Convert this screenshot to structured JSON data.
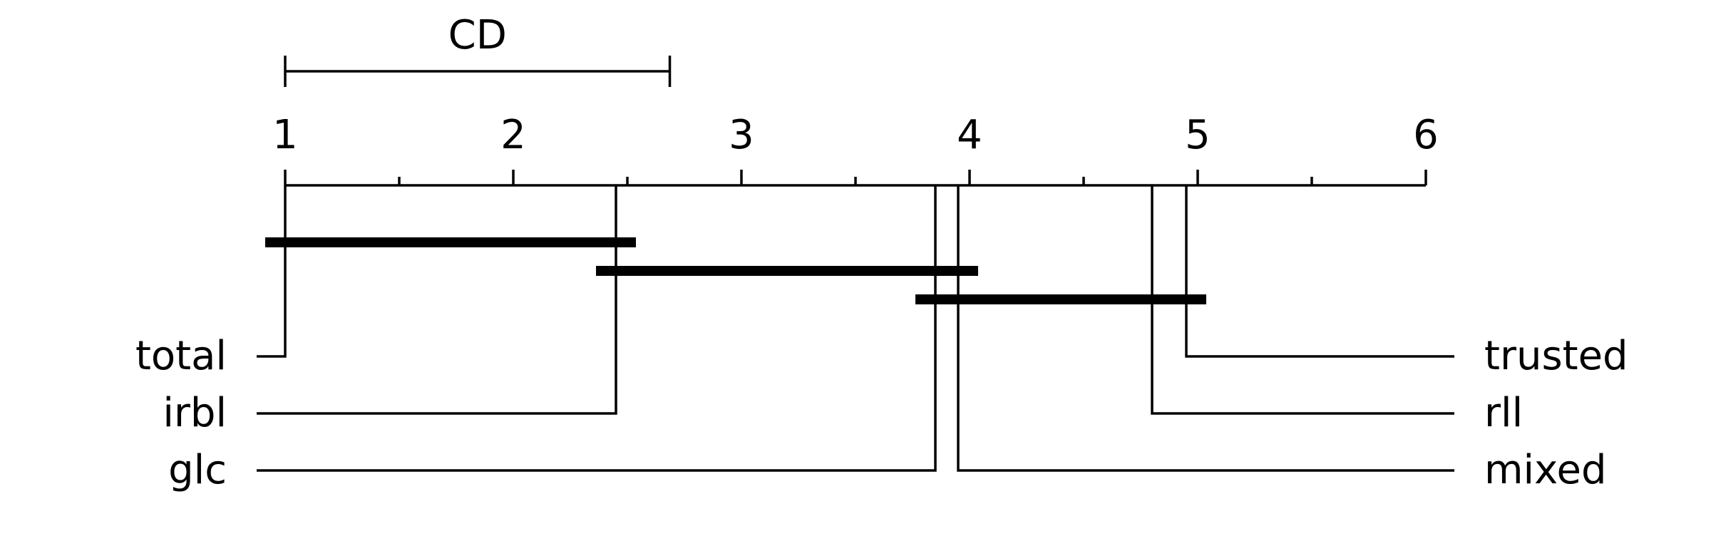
{
  "chart_data": {
    "type": "critical-difference",
    "axis": {
      "min": 1,
      "max": 6,
      "tick_labels": [
        "1",
        "2",
        "3",
        "4",
        "5",
        "6"
      ]
    },
    "cd": {
      "label": "CD",
      "value": 1.686
    },
    "methods": [
      {
        "name": "total",
        "rank": 1.0,
        "side": "left"
      },
      {
        "name": "irbl",
        "rank": 2.45,
        "side": "left"
      },
      {
        "name": "glc",
        "rank": 3.85,
        "side": "left"
      },
      {
        "name": "mixed",
        "rank": 3.95,
        "side": "right"
      },
      {
        "name": "rll",
        "rank": 4.8,
        "side": "right"
      },
      {
        "name": "trusted",
        "rank": 4.95,
        "side": "right"
      }
    ],
    "cliques": [
      {
        "from": 1.0,
        "to": 2.45
      },
      {
        "from": 2.45,
        "to": 3.95
      },
      {
        "from": 3.85,
        "to": 4.95
      }
    ]
  }
}
